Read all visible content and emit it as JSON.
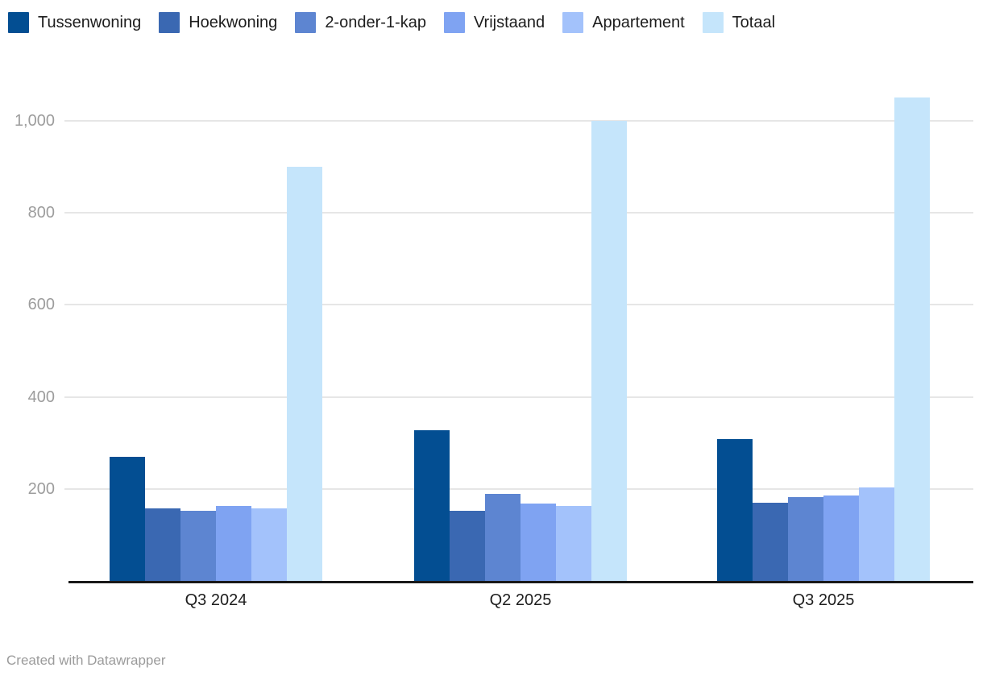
{
  "footer": {
    "credit": "Created with Datawrapper"
  },
  "chart_data": {
    "type": "bar",
    "grouped": true,
    "title": "",
    "xlabel": "",
    "ylabel": "",
    "legend_position": "top",
    "grid": true,
    "categories": [
      "Q3 2024",
      "Q2 2025",
      "Q3 2025"
    ],
    "series": [
      {
        "name": "Tussenwoning",
        "color": "#034e92",
        "values": [
          270,
          327,
          309
        ]
      },
      {
        "name": "Hoekwoning",
        "color": "#3a68b2",
        "values": [
          158,
          153,
          170
        ]
      },
      {
        "name": "2-onder-1-kap",
        "color": "#5d85d1",
        "values": [
          152,
          189,
          182
        ]
      },
      {
        "name": "Vrijstaand",
        "color": "#7fa3f2",
        "values": [
          162,
          168,
          185
        ]
      },
      {
        "name": "Appartement",
        "color": "#a3c2fb",
        "values": [
          158,
          163,
          204
        ]
      },
      {
        "name": "Totaal",
        "color": "#c5e5fb",
        "values": [
          900,
          1000,
          1050
        ]
      }
    ],
    "y_axis": {
      "range": [
        0,
        1100
      ],
      "ticks": [
        200,
        400,
        600,
        800,
        1000
      ],
      "tick_labels": [
        "200",
        "400",
        "600",
        "800",
        "1,000"
      ]
    },
    "x_axis": {
      "labels": [
        "Q3 2024",
        "Q2 2025",
        "Q3 2025"
      ]
    },
    "colors": {
      "gridline": "#e6e6e6",
      "axis_line": "#191919",
      "y_tick_text": "#9d9d9d",
      "x_tick_text": "#1d1d1d",
      "legend_text": "#1d1d1d",
      "background": "#ffffff",
      "credit_text": "#9b9b9b"
    }
  }
}
